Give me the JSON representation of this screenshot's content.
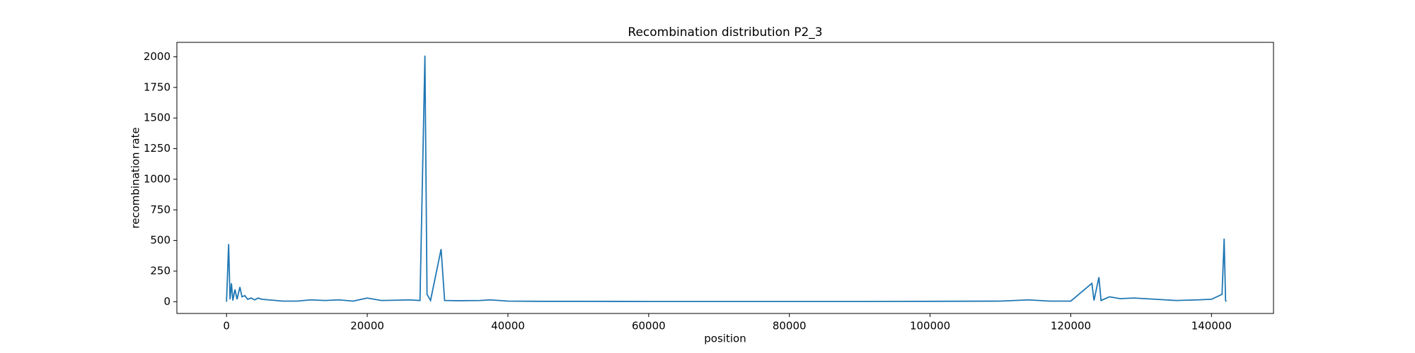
{
  "chart_data": {
    "type": "line",
    "title": "Recombination distribution P2_3",
    "x_label": "position",
    "y_label": "recombination rate",
    "xlim": [
      -7056,
      148814
    ],
    "ylim": [
      -96,
      2118
    ],
    "xticks": [
      0,
      20000,
      40000,
      60000,
      80000,
      100000,
      120000,
      140000
    ],
    "yticks": [
      0,
      250,
      500,
      750,
      1000,
      1250,
      1500,
      1750,
      2000
    ],
    "grid": false,
    "series": [
      {
        "color": "#1f77b4",
        "x": [
          0,
          300,
          500,
          700,
          900,
          1200,
          1500,
          1900,
          2200,
          2600,
          3000,
          3500,
          4000,
          4500,
          5000,
          6000,
          7000,
          8000,
          10000,
          12000,
          14000,
          16000,
          18000,
          20000,
          22000,
          24000,
          26000,
          27500,
          28200,
          28500,
          29000,
          30500,
          31000,
          33000,
          36000,
          37500,
          40000,
          45000,
          50000,
          60000,
          70000,
          80000,
          90000,
          100000,
          110000,
          114000,
          117000,
          120000,
          123000,
          123300,
          124000,
          124300,
          125500,
          127000,
          129000,
          130500,
          132000,
          135000,
          138000,
          140000,
          141500,
          141800,
          142000,
          142100
        ],
        "values": [
          0,
          470,
          20,
          150,
          10,
          100,
          20,
          120,
          40,
          50,
          20,
          30,
          15,
          30,
          20,
          15,
          10,
          5,
          5,
          15,
          10,
          15,
          5,
          30,
          10,
          12,
          15,
          10,
          2010,
          60,
          10,
          430,
          10,
          8,
          10,
          15,
          5,
          3,
          3,
          2,
          2,
          2,
          2,
          3,
          5,
          15,
          5,
          5,
          150,
          10,
          200,
          10,
          40,
          25,
          30,
          25,
          20,
          10,
          15,
          20,
          60,
          515,
          10,
          0
        ]
      }
    ]
  }
}
